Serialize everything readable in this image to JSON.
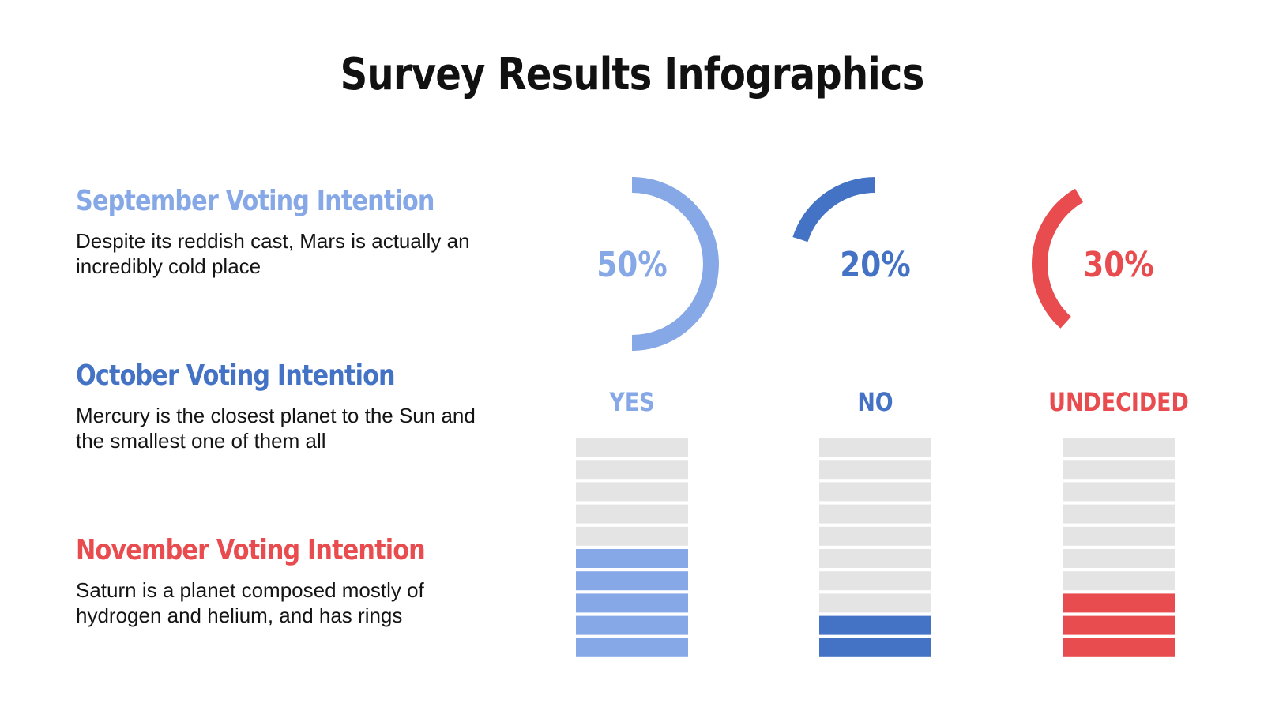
{
  "page": {
    "title": "Survey Results Infographics"
  },
  "intentions": [
    {
      "heading": "September Voting Intention",
      "text": "Despite its reddish cast, Mars is actually an incredibly cold place",
      "color": "#86a8e7"
    },
    {
      "heading": "October Voting Intention",
      "text": "Mercury is the closest planet to the Sun and the smallest one of them all",
      "color": "#4472c4"
    },
    {
      "heading": "November Voting Intention",
      "text": "Saturn is a planet composed mostly of hydrogen and helium, and has rings",
      "color": "#e84c4f"
    }
  ],
  "chart_data": {
    "type": "bar",
    "categories": [
      "YES",
      "NO",
      "UNDECIDED"
    ],
    "values": [
      50,
      20,
      30
    ],
    "value_labels": [
      "50%",
      "20%",
      "30%"
    ],
    "max": 100,
    "segments_total": 10,
    "colors": [
      "#86a8e7",
      "#4472c4",
      "#e84c4f"
    ],
    "empty_color": "#e4e4e4"
  }
}
